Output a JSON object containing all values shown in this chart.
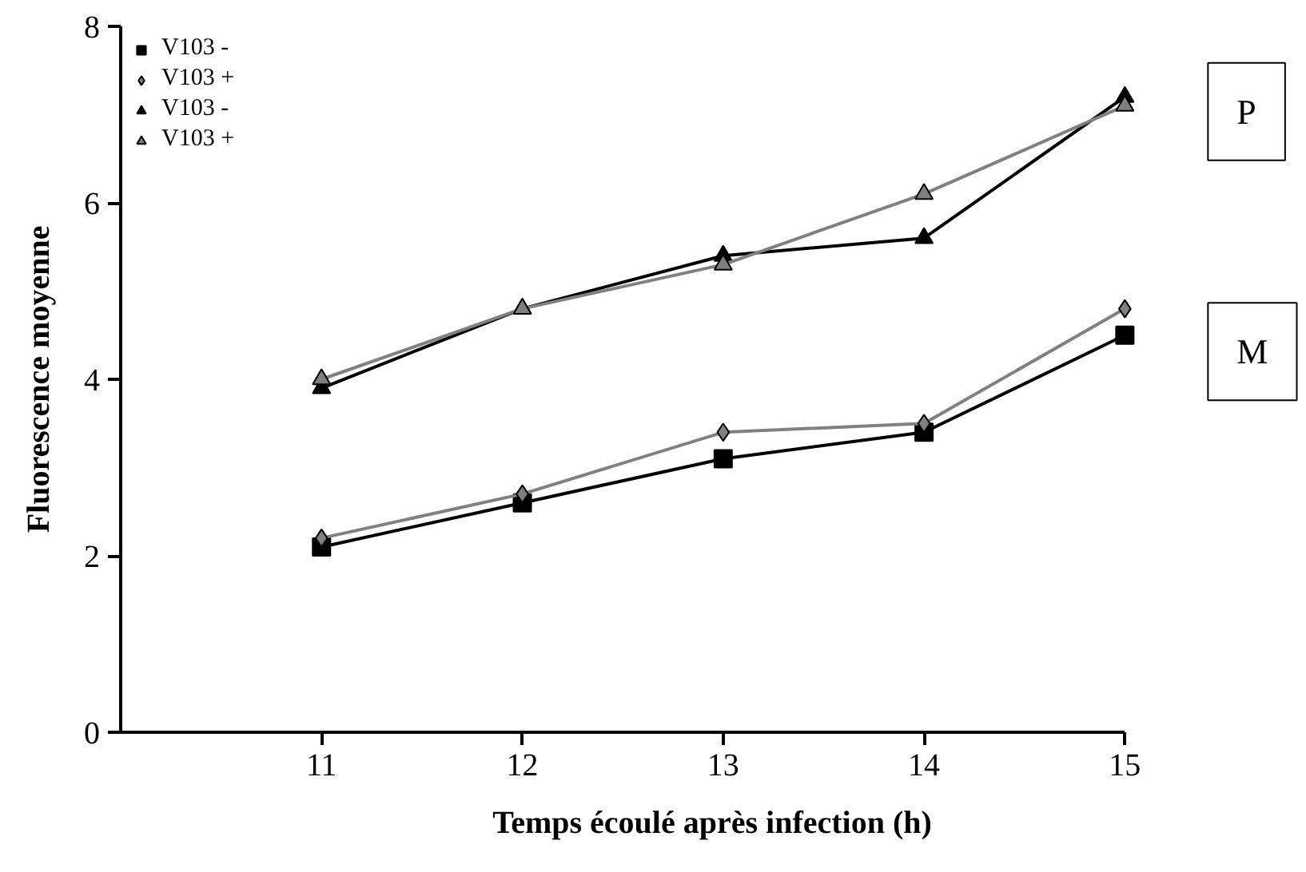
{
  "chart_data": {
    "type": "line",
    "xlabel": "Temps écoulé après infection (h)",
    "ylabel": "Fluorescence moyenne",
    "x": [
      11,
      12,
      13,
      14,
      15
    ],
    "xlim": [
      10,
      15
    ],
    "xticks": [
      11,
      12,
      13,
      14,
      15
    ],
    "ylim": [
      0,
      8
    ],
    "yticks": [
      0,
      2,
      4,
      6,
      8
    ],
    "series": [
      {
        "name": "V103 -",
        "color": "#000000",
        "marker": "square",
        "values": [
          2.1,
          2.6,
          3.1,
          3.4,
          4.5
        ]
      },
      {
        "name": "V103 +",
        "color": "#808080",
        "marker": "diamond",
        "values": [
          2.2,
          2.7,
          3.4,
          3.5,
          4.8
        ]
      },
      {
        "name": "V103 -",
        "color": "#000000",
        "marker": "triangle",
        "values": [
          3.9,
          4.8,
          5.4,
          5.6,
          7.2
        ]
      },
      {
        "name": "V103 +",
        "color": "#808080",
        "marker": "triangle",
        "values": [
          4.0,
          4.8,
          5.3,
          6.1,
          7.1
        ]
      }
    ],
    "annotations": [
      "P",
      "M"
    ],
    "grid": false,
    "legend": "top left",
    "line_style": "solid"
  }
}
